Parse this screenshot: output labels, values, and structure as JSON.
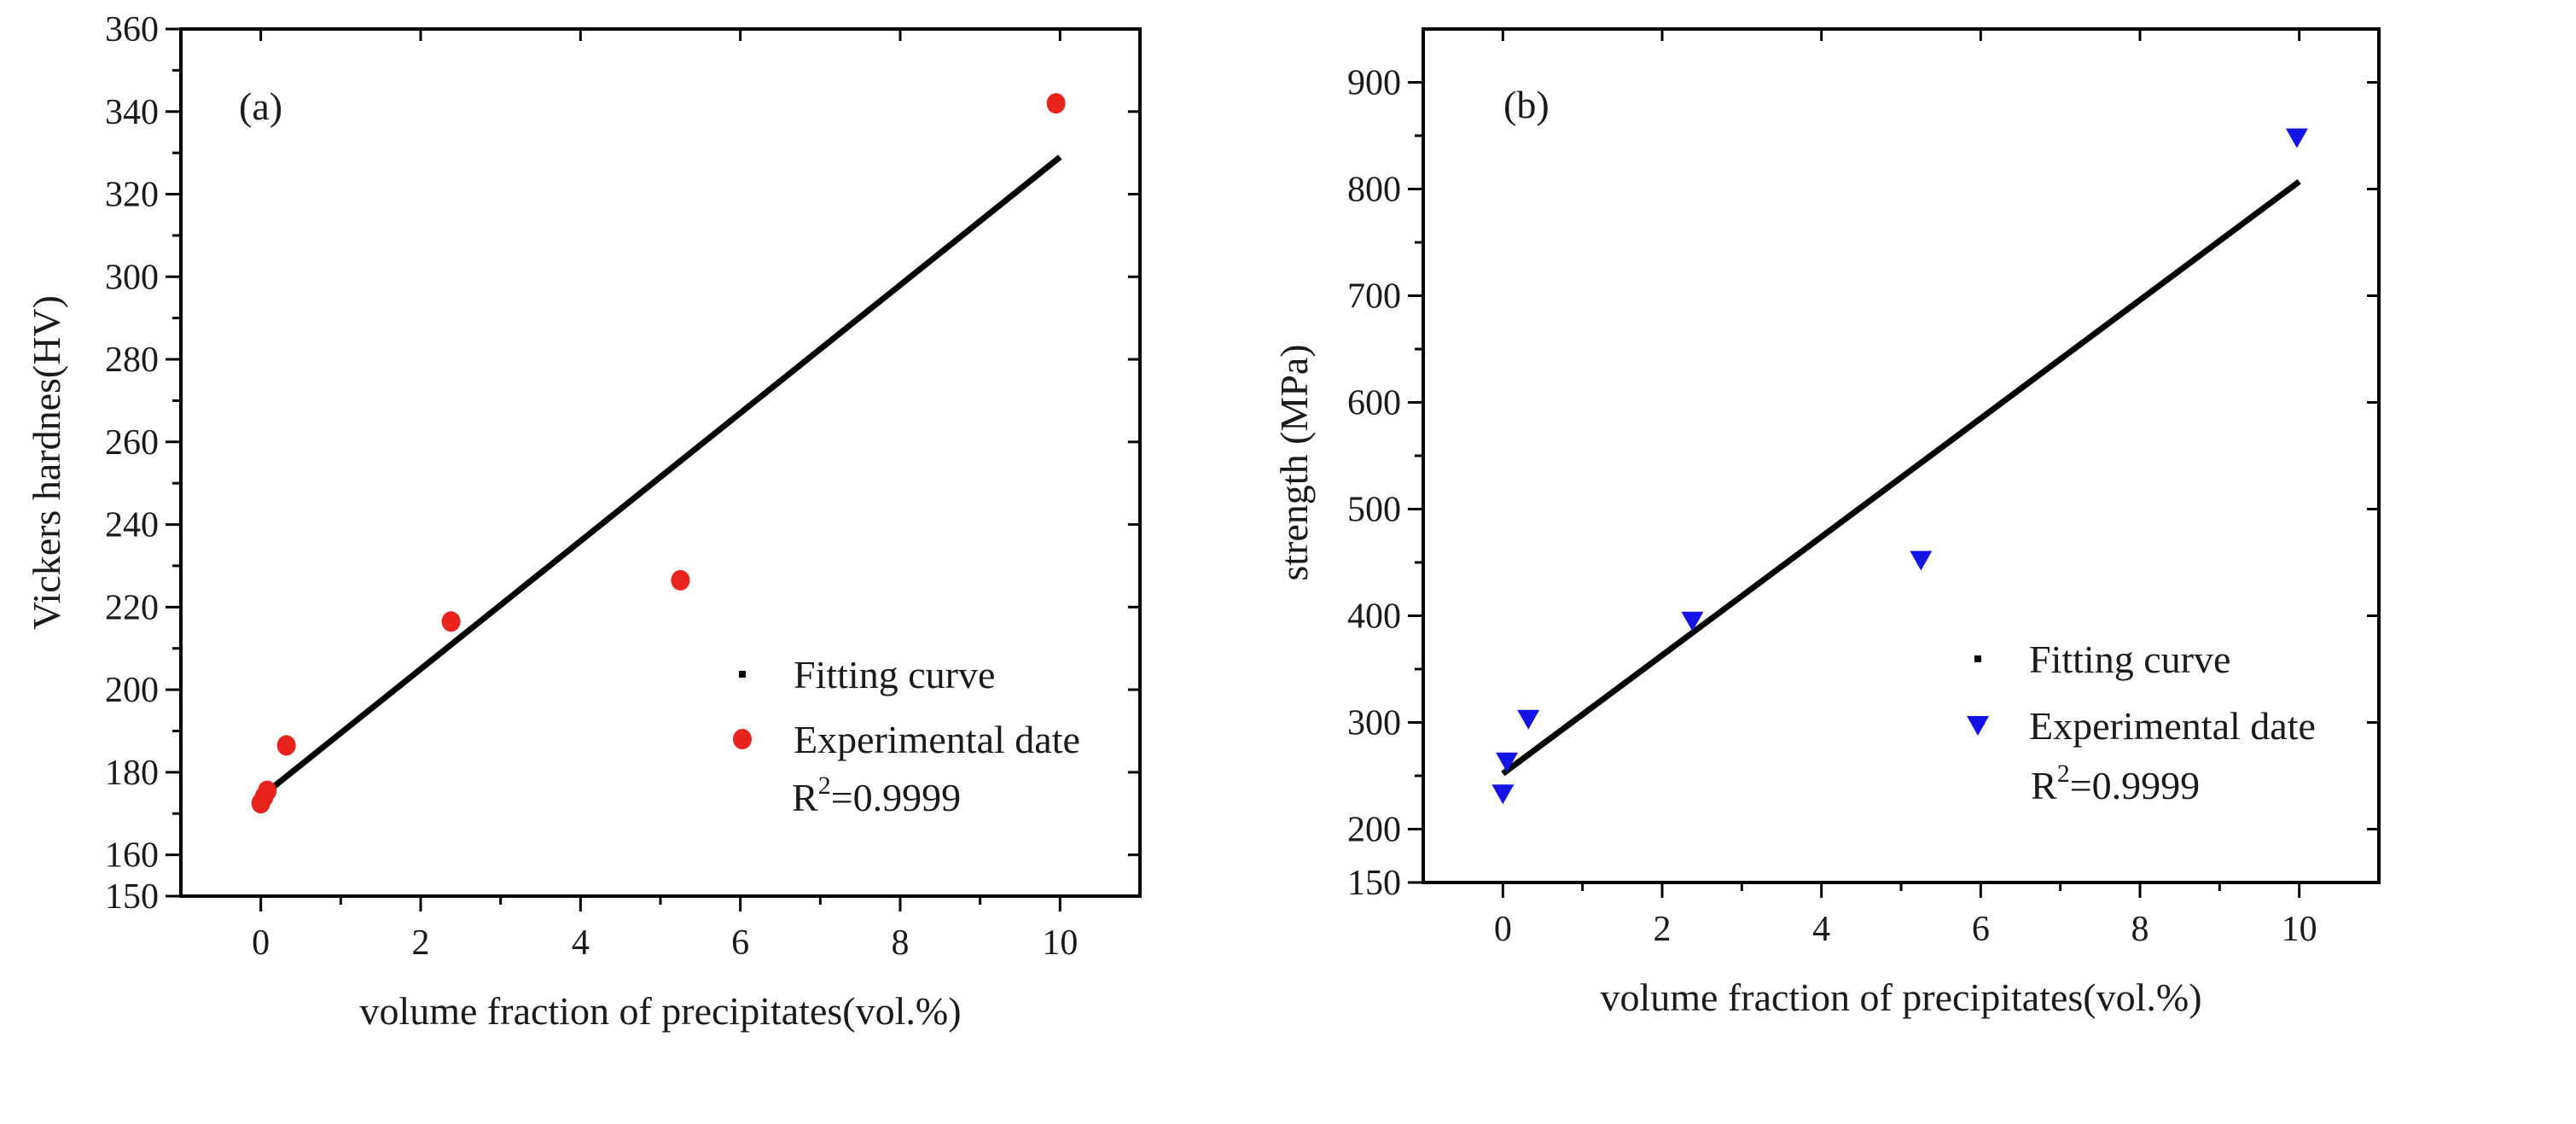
{
  "chart_data": [
    {
      "type": "scatter",
      "panel_label": "(a)",
      "xlabel": "volume fraction of precipitates(vol.%)",
      "ylabel": "Vickers hardnes(HV)",
      "xlim": [
        -1,
        11
      ],
      "ylim": [
        150,
        360
      ],
      "xticks": [
        0,
        2,
        4,
        6,
        8,
        10
      ],
      "xtick_labels": [
        "0",
        "2",
        "4",
        "6",
        "8",
        "10"
      ],
      "yticks": [
        150,
        160,
        180,
        200,
        220,
        240,
        260,
        280,
        300,
        320,
        340,
        360
      ],
      "ytick_labels": [
        "150",
        "160",
        "180",
        "200",
        "220",
        "240",
        "260",
        "280",
        "300",
        "320",
        "340",
        "360"
      ],
      "series": [
        {
          "name": "Experimental date",
          "marker": "circle",
          "color": "#e8231c",
          "x": [
            0.0,
            0.04,
            0.08,
            0.32,
            2.38,
            5.25,
            9.95
          ],
          "y": [
            172.5,
            174.0,
            175.5,
            186.5,
            216.5,
            226.5,
            342.0
          ]
        },
        {
          "name": "Fitting curve",
          "marker": "line",
          "color": "#000000",
          "x": [
            0,
            10
          ],
          "y": [
            174.0,
            329.0
          ]
        }
      ],
      "legend": {
        "position": "bottom-right",
        "entries": [
          "Fitting curve",
          "Experimental date"
        ],
        "annotation_base": "R",
        "annotation_sup": "2",
        "annotation_value": "=0.9999"
      }
    },
    {
      "type": "scatter",
      "panel_label": "(b)",
      "xlabel": "volume fraction of precipitates(vol.%)",
      "ylabel": "strength (MPa)",
      "xlim": [
        -1,
        11
      ],
      "ylim": [
        150,
        950
      ],
      "xticks": [
        0,
        2,
        4,
        6,
        8,
        10
      ],
      "xtick_labels": [
        "0",
        "2",
        "4",
        "6",
        "8",
        "10"
      ],
      "yticks": [
        150,
        200,
        300,
        400,
        500,
        600,
        700,
        800,
        900
      ],
      "ytick_labels": [
        "150",
        "200",
        "300",
        "400",
        "500",
        "600",
        "700",
        "800",
        "900"
      ],
      "series": [
        {
          "name": "Experimental date",
          "marker": "triangle-down",
          "color": "#1414e6",
          "x": [
            0.0,
            0.05,
            0.32,
            2.38,
            5.25,
            9.97
          ],
          "y": [
            233,
            263,
            303,
            395,
            452,
            848
          ]
        },
        {
          "name": "Fitting curve",
          "marker": "line",
          "color": "#000000",
          "x": [
            0,
            10
          ],
          "y": [
            252,
            807
          ]
        }
      ],
      "legend": {
        "position": "bottom-right",
        "entries": [
          "Fitting curve",
          "Experimental date"
        ],
        "annotation_base": "R",
        "annotation_sup": "2",
        "annotation_value": "=0.9999"
      }
    }
  ]
}
